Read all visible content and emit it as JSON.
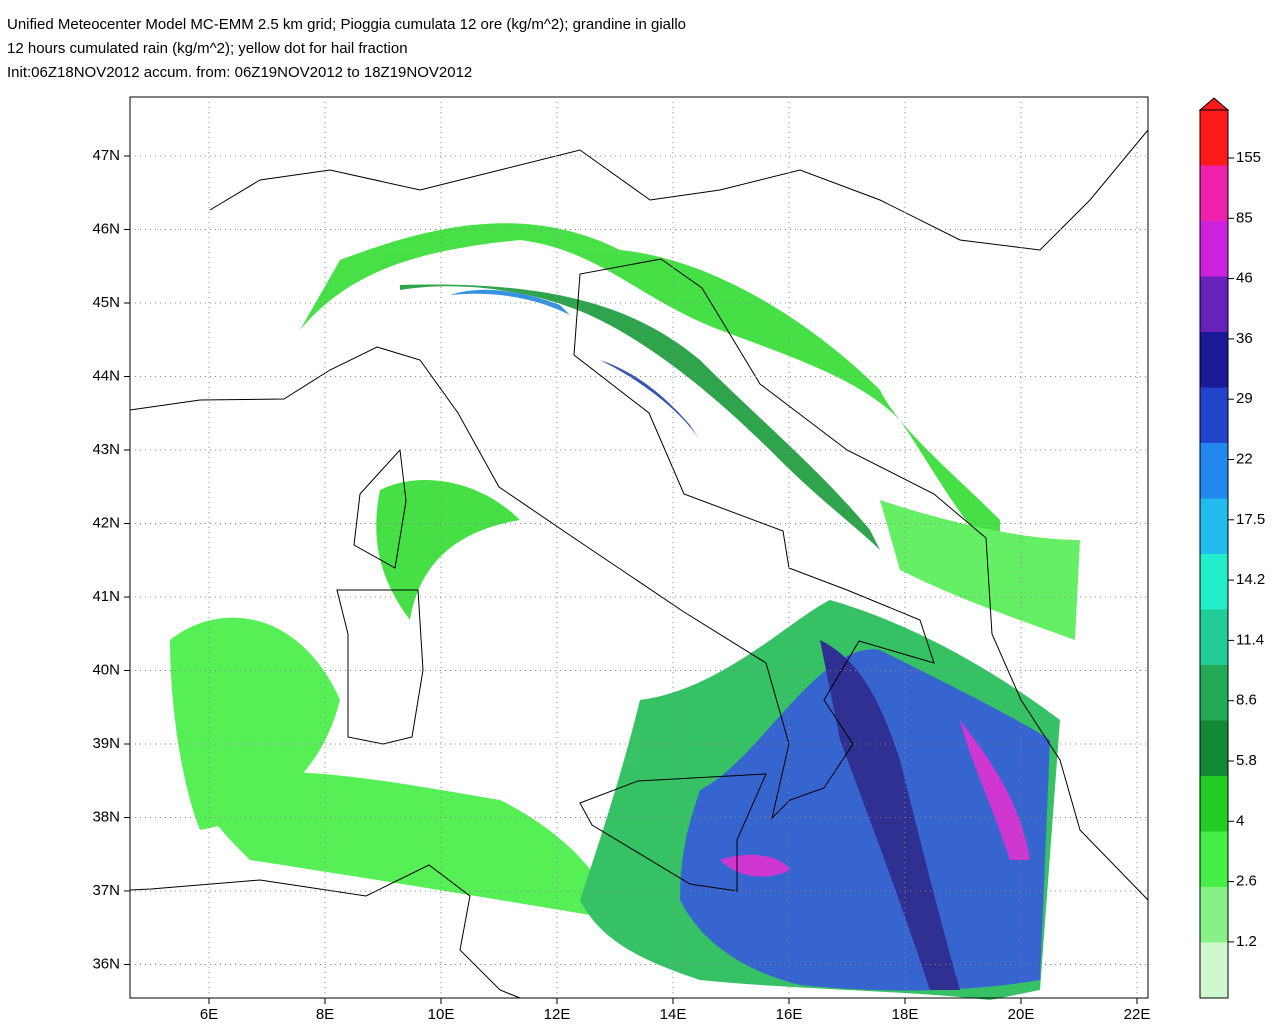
{
  "header": {
    "lines": [
      "Unified Meteocenter Model MC-EMM 2.5 km grid; Pioggia cumulata 12 ore (kg/m^2); grandine in giallo",
      "12 hours cumulated rain (kg/m^2); yellow dot for hail fraction",
      "Init:06Z18NOV2012 accum. from: 06Z19NOV2012 to 18Z19NOV2012"
    ]
  },
  "map": {
    "lat_labels": [
      "47N",
      "46N",
      "45N",
      "44N",
      "43N",
      "42N",
      "41N",
      "40N",
      "39N",
      "38N",
      "37N",
      "36N"
    ],
    "lon_labels": [
      "6E",
      "8E",
      "10E",
      "12E",
      "14E",
      "16E",
      "18E",
      "20E",
      "22E"
    ]
  },
  "colorbar": {
    "ticks": [
      155,
      85,
      46,
      36,
      29,
      22,
      17.5,
      14.2,
      11.4,
      8.6,
      5.8,
      4,
      2.6,
      1.2
    ]
  }
}
